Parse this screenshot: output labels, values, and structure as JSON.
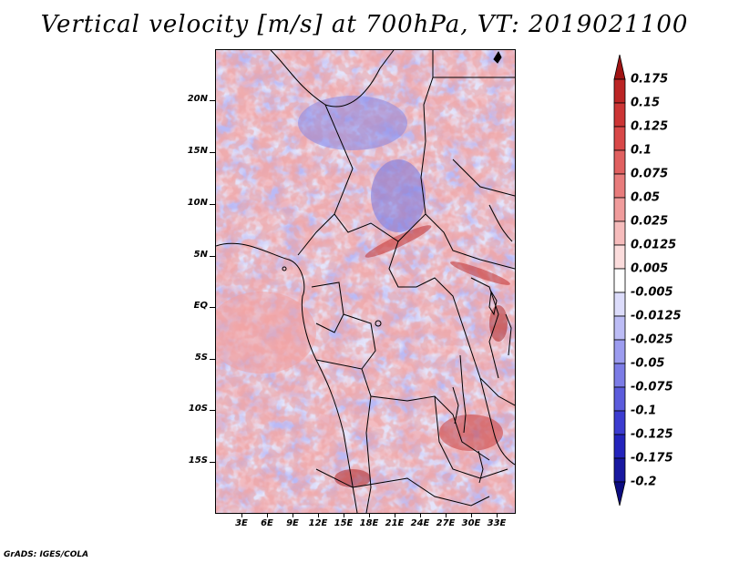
{
  "title": "Vertical velocity [m/s] at 700hPa, VT: 2019021100",
  "credit": "GrADS: IGES/COLA",
  "map": {
    "lon_range": [
      0,
      35
    ],
    "lat_range": [
      -20,
      25
    ],
    "y_ticks": [
      "20N",
      "15N",
      "10N",
      "5N",
      "EQ",
      "5S",
      "10S",
      "15S"
    ],
    "x_ticks": [
      "3E",
      "6E",
      "9E",
      "12E",
      "15E",
      "18E",
      "21E",
      "24E",
      "27E",
      "30E",
      "33E"
    ]
  },
  "colorbar": {
    "levels": [
      "0.175",
      "0.15",
      "0.125",
      "0.1",
      "0.075",
      "0.05",
      "0.025",
      "0.0125",
      "0.005",
      "-0.005",
      "-0.0125",
      "-0.025",
      "-0.05",
      "-0.075",
      "-0.1",
      "-0.125",
      "-0.175",
      "-0.2"
    ],
    "colors": [
      "#a01414",
      "#bb2525",
      "#cc3535",
      "#d84848",
      "#e06060",
      "#e87c7c",
      "#f09c9c",
      "#f6bcbc",
      "#fbdcdc",
      "#ffffff",
      "#dcdcfb",
      "#bcbcf5",
      "#9c9cef",
      "#7c7ce6",
      "#5c5cdc",
      "#3c3cd0",
      "#2424bc",
      "#1818a0",
      "#0c0c80"
    ]
  }
}
